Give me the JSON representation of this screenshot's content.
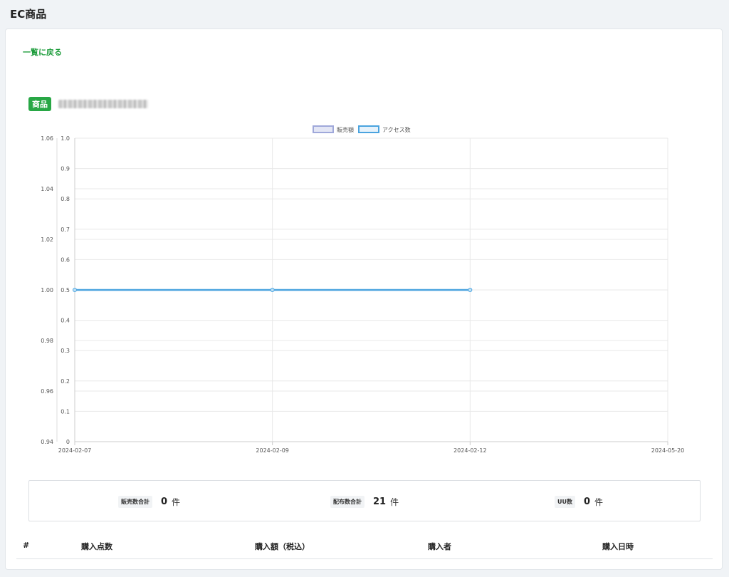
{
  "header": {
    "title": "EC商品"
  },
  "nav": {
    "back_label": "一覧に戻る"
  },
  "product": {
    "badge": "商品"
  },
  "chart_data": {
    "type": "line",
    "legend": [
      "販売額",
      "アクセス数"
    ],
    "legend_position": "top-center",
    "categories": [
      "2024-02-07",
      "2024-02-09",
      "2024-02-12",
      "2024-05-20"
    ],
    "series": [
      {
        "name": "販売額",
        "color": "#9fa8da",
        "values": [
          null,
          null,
          null,
          null
        ],
        "axis": "left"
      },
      {
        "name": "アクセス数",
        "color": "#4aa3df",
        "values": [
          0.5,
          0.5,
          0.5,
          null
        ],
        "axis": "right"
      }
    ],
    "y_left": {
      "min": 0.94,
      "max": 1.06,
      "ticks": [
        "1.06",
        "1.04",
        "1.02",
        "1.00",
        "0.98",
        "0.96",
        "0.94"
      ]
    },
    "y_right": {
      "min": 0,
      "max": 1.0,
      "ticks": [
        "1.0",
        "0.9",
        "0.8",
        "0.7",
        "0.6",
        "0.5",
        "0.4",
        "0.3",
        "0.2",
        "0.1",
        "0"
      ]
    },
    "grid": true
  },
  "summary": {
    "sales_label": "販売数合計",
    "sales_value": "0",
    "sales_unit": "件",
    "dist_label": "配布数合計",
    "dist_value": "21",
    "dist_unit": "件",
    "uu_label": "UU数",
    "uu_value": "0",
    "uu_unit": "件"
  },
  "table": {
    "headers": [
      "#",
      "購入点数",
      "購入額（税込）",
      "購入者",
      "購入日時"
    ]
  }
}
